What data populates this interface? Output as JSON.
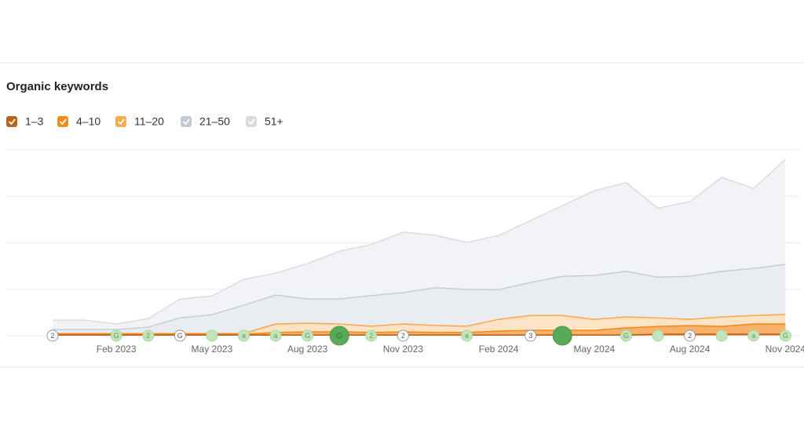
{
  "chart_data": {
    "type": "stacked-area",
    "title": "Organic keywords",
    "categories": [
      null,
      null,
      "Feb 2023",
      null,
      null,
      "May 2023",
      null,
      null,
      "Aug 2023",
      null,
      null,
      "Nov 2023",
      null,
      null,
      "Feb 2024",
      null,
      null,
      "May 2024",
      null,
      null,
      "Aug 2024",
      null,
      null,
      "Nov 2024"
    ],
    "ylim": [
      0,
      1000
    ],
    "yticks": [
      0,
      250,
      500,
      750,
      1000
    ],
    "grid": true,
    "series": [
      {
        "name": "1–3",
        "color": "#b5651d",
        "fill": "#e9a35c",
        "values": [
          4,
          4,
          4,
          4,
          4,
          4,
          4,
          4,
          4,
          4,
          4,
          4,
          4,
          4,
          4,
          4,
          4,
          4,
          4,
          8,
          8,
          8,
          8,
          8
        ]
      },
      {
        "name": "4–10",
        "color": "#f08c1a",
        "fill": "#f6b26a",
        "values": [
          4,
          4,
          4,
          4,
          4,
          4,
          4,
          13,
          17,
          17,
          13,
          17,
          13,
          13,
          21,
          25,
          25,
          25,
          38,
          42,
          46,
          42,
          55,
          55
        ]
      },
      {
        "name": "11–20",
        "color": "#f5ac4f",
        "fill": "#fde3c6",
        "values": [
          4,
          4,
          4,
          4,
          4,
          4,
          4,
          46,
          46,
          42,
          34,
          42,
          38,
          34,
          63,
          80,
          80,
          59,
          59,
          46,
          34,
          51,
          46,
          51
        ]
      },
      {
        "name": "21–50",
        "color": "#c3c9d2",
        "fill": "#e9ecf1",
        "values": [
          21,
          21,
          21,
          34,
          84,
          101,
          152,
          156,
          131,
          135,
          165,
          169,
          203,
          198,
          160,
          177,
          211,
          236,
          245,
          219,
          232,
          245,
          253,
          270
        ]
      },
      {
        "name": "51+",
        "color": "#d6dae1",
        "fill": "#f2f3f7",
        "values": [
          51,
          51,
          30,
          46,
          101,
          101,
          139,
          118,
          190,
          257,
          274,
          325,
          283,
          253,
          291,
          333,
          380,
          456,
          477,
          371,
          401,
          506,
          430,
          565
        ]
      }
    ],
    "annotations": [
      {
        "index": 0,
        "label": "2",
        "color": "#ffffff"
      },
      {
        "index": 2,
        "label": "G",
        "color": "#c4e4bd"
      },
      {
        "index": 3,
        "label": "2",
        "color": "#c4e4bd"
      },
      {
        "index": 4,
        "label": "G",
        "color": "#ffffff"
      },
      {
        "index": 5,
        "color": "#c4e4bd"
      },
      {
        "index": 6,
        "label": "a",
        "color": "#c4e4bd"
      },
      {
        "index": 7,
        "label": "a",
        "color": "#c4e4bd"
      },
      {
        "index": 8,
        "label": "G",
        "color": "#c4e4bd"
      },
      {
        "index": 9,
        "label": "G",
        "color": "#5aa95a",
        "big": true
      },
      {
        "index": 10,
        "label": "2",
        "color": "#c4e4bd"
      },
      {
        "index": 11,
        "label": "2",
        "color": "#ffffff"
      },
      {
        "index": 13,
        "label": "a",
        "color": "#c4e4bd"
      },
      {
        "index": 15,
        "label": "3",
        "color": "#ffffff"
      },
      {
        "index": 16,
        "color": "#5aa95a",
        "big": true
      },
      {
        "index": 18,
        "label": "G",
        "color": "#c4e4bd"
      },
      {
        "index": 19,
        "color": "#c4e4bd"
      },
      {
        "index": 20,
        "label": "2",
        "color": "#ffffff"
      },
      {
        "index": 21,
        "color": "#c4e4bd"
      },
      {
        "index": 22,
        "label": "a",
        "color": "#c4e4bd"
      },
      {
        "index": 23,
        "label": "G",
        "color": "#c4e4bd"
      }
    ]
  }
}
